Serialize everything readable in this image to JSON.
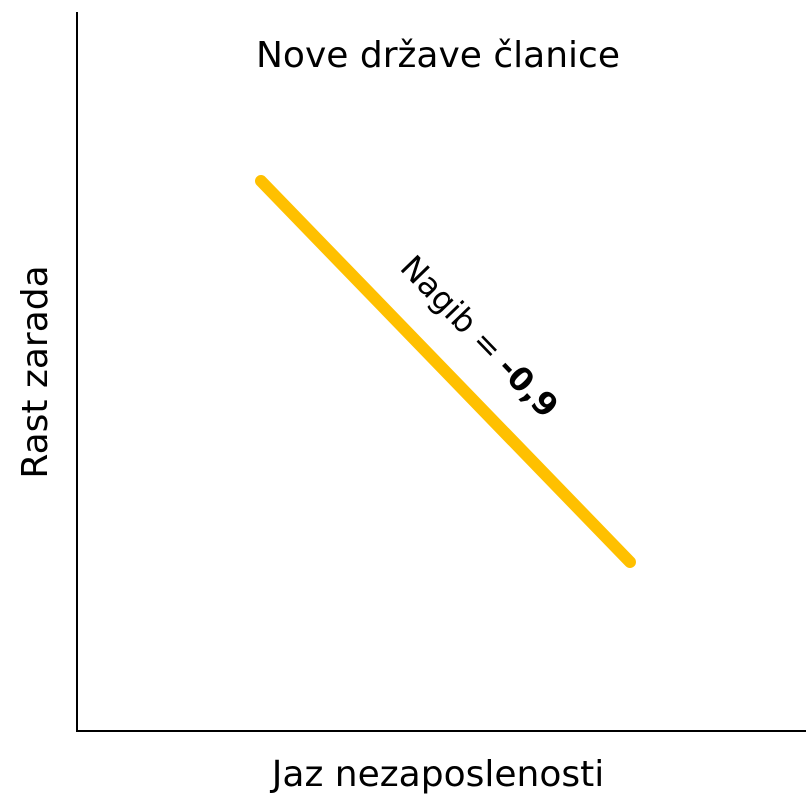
{
  "title": "Nove države članice",
  "x_axis_label": "Jaz nezaposlenosti",
  "y_axis_label": "Rast zarada",
  "annotation": {
    "label": "Nagib =",
    "value": "-0,9"
  }
}
